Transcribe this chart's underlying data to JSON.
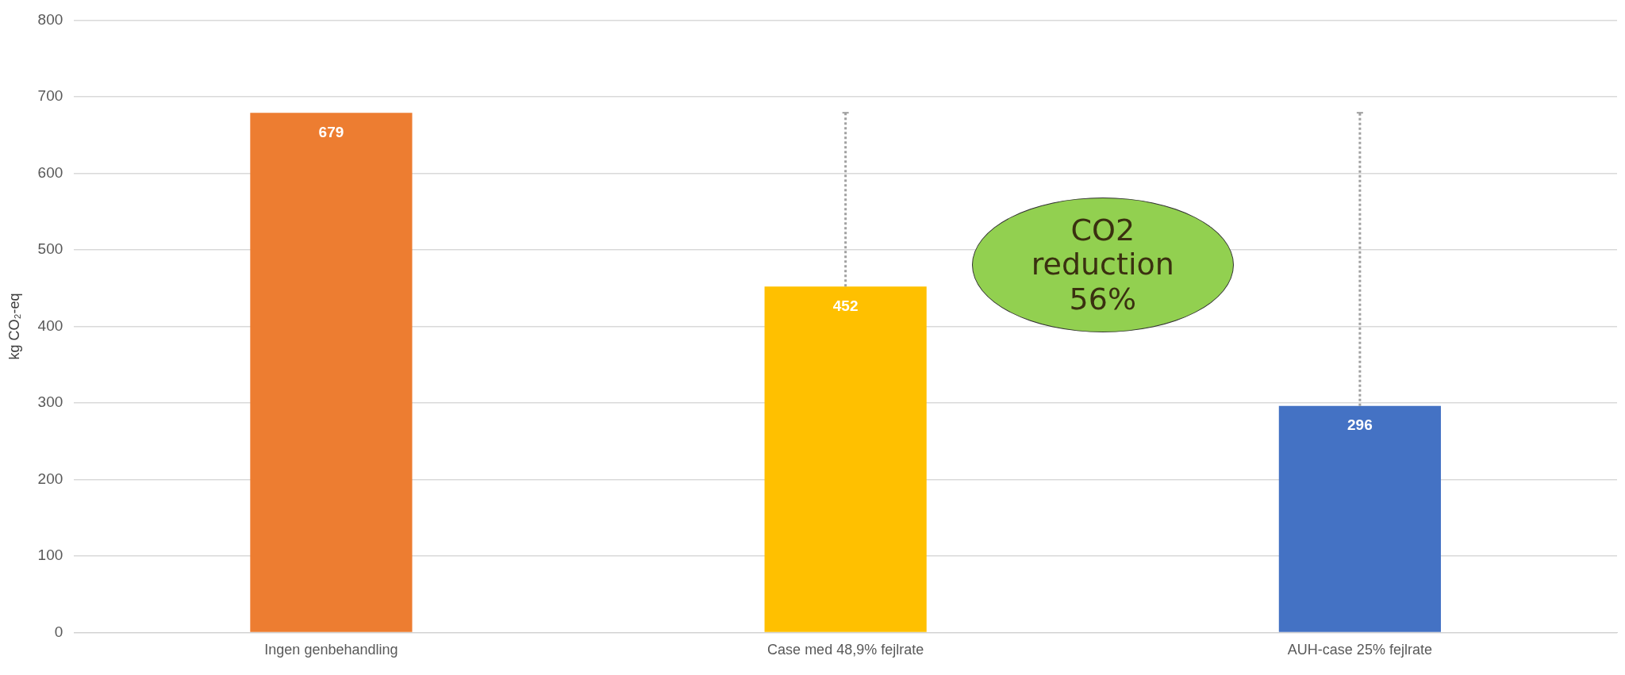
{
  "chart_data": {
    "type": "bar",
    "ylabel": "kg CO₂-eq",
    "categories": [
      "Ingen genbehandling",
      "Case med 48,9% fejlrate",
      "AUH-case 25% fejlrate"
    ],
    "values": [
      679,
      452,
      296
    ],
    "colors": [
      "#ed7d31",
      "#ffc000",
      "#4472c4"
    ],
    "errors": [
      null,
      [
        452,
        679
      ],
      [
        296,
        679
      ]
    ],
    "ylim": [
      0,
      800
    ],
    "yticks": [
      0,
      100,
      200,
      300,
      400,
      500,
      600,
      700,
      800
    ],
    "grid": "y",
    "legend": false,
    "data_labels": true,
    "annotations": [
      "CO2 reduction 56%"
    ]
  }
}
